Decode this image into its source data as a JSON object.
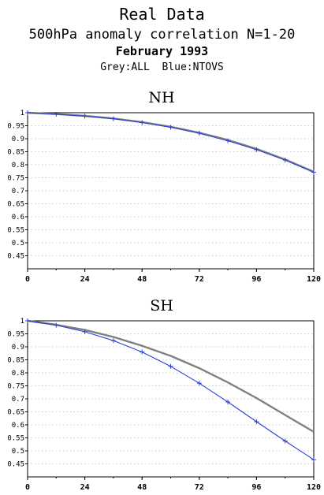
{
  "header": {
    "title": "Real Data",
    "subtitle": "500hPa anomaly correlation N=1-20",
    "date": "February 1993",
    "legend": "Grey:ALL  Blue:NTOVS"
  },
  "colors": {
    "all": "#808080",
    "ntovs": "#2b3fd6",
    "grid": "#9a9a9a"
  },
  "chart_data": [
    {
      "type": "line",
      "title": "NH",
      "x": [
        0,
        12,
        24,
        36,
        48,
        60,
        72,
        84,
        96,
        108,
        120
      ],
      "xticks": [
        "0",
        "24",
        "48",
        "72",
        "96",
        "120"
      ],
      "yticks": [
        "1",
        "0.95",
        "0.9",
        "0.85",
        "0.8",
        "0.75",
        "0.7",
        "0.65",
        "0.6",
        "0.55",
        "0.5",
        "0.45"
      ],
      "xlim": [
        0,
        120
      ],
      "ylim": [
        0.4,
        1.0
      ],
      "grid": true,
      "series": [
        {
          "name": "ALL",
          "color": "#808080",
          "values": [
            1.0,
            0.995,
            0.988,
            0.978,
            0.964,
            0.946,
            0.923,
            0.895,
            0.861,
            0.82,
            0.773
          ]
        },
        {
          "name": "NTOVS",
          "color": "#2b3fd6",
          "values": [
            1.0,
            0.994,
            0.987,
            0.977,
            0.962,
            0.944,
            0.921,
            0.892,
            0.858,
            0.818,
            0.771
          ]
        }
      ]
    },
    {
      "type": "line",
      "title": "SH",
      "x": [
        0,
        12,
        24,
        36,
        48,
        60,
        72,
        84,
        96,
        108,
        120
      ],
      "xticks": [
        "0",
        "24",
        "48",
        "72",
        "96",
        "120"
      ],
      "yticks": [
        "1",
        "0.95",
        "0.9",
        "0.85",
        "0.8",
        "0.75",
        "0.7",
        "0.65",
        "0.6",
        "0.55",
        "0.5",
        "0.45"
      ],
      "xlim": [
        0,
        120
      ],
      "ylim": [
        0.4,
        1.0
      ],
      "grid": true,
      "series": [
        {
          "name": "ALL",
          "color": "#808080",
          "values": [
            1.0,
            0.985,
            0.965,
            0.938,
            0.904,
            0.865,
            0.818,
            0.763,
            0.703,
            0.638,
            0.573
          ]
        },
        {
          "name": "NTOVS",
          "color": "#2b3fd6",
          "values": [
            1.0,
            0.983,
            0.958,
            0.924,
            0.88,
            0.825,
            0.76,
            0.688,
            0.612,
            0.538,
            0.466
          ]
        }
      ]
    }
  ]
}
